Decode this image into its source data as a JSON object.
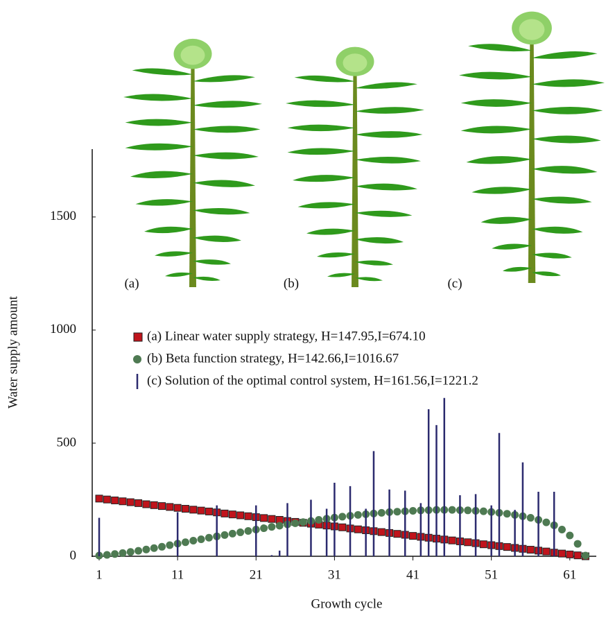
{
  "chart_data": {
    "type": "scatter",
    "xlabel": "Growth cycle",
    "ylabel": "Water supply amount",
    "xlim": [
      0,
      64.5
    ],
    "ylim": [
      0,
      1800
    ],
    "xticks": [
      1,
      11,
      21,
      31,
      41,
      51,
      61
    ],
    "yticks": [
      0,
      500,
      1000,
      1500
    ],
    "annotations": [
      "(a)",
      "(b)",
      "(c)"
    ],
    "series": [
      {
        "name": "(a) Linear water supply strategy, H=147.95,I=674.10",
        "marker": "square",
        "color": "#c0141c",
        "x": [
          1,
          2,
          3,
          4,
          5,
          6,
          7,
          8,
          9,
          10,
          11,
          12,
          13,
          14,
          15,
          16,
          17,
          18,
          19,
          20,
          21,
          22,
          23,
          24,
          25,
          26,
          27,
          28,
          29,
          30,
          31,
          32,
          33,
          34,
          35,
          36,
          37,
          38,
          39,
          40,
          41,
          42,
          43,
          44,
          45,
          46,
          47,
          48,
          49,
          50,
          51,
          52,
          53,
          54,
          55,
          56,
          57,
          58,
          59,
          60,
          61,
          62,
          63
        ],
        "values": [
          255,
          251,
          247,
          243,
          239,
          235,
          230,
          226,
          222,
          218,
          214,
          210,
          206,
          202,
          198,
          194,
          189,
          185,
          181,
          177,
          173,
          169,
          165,
          161,
          156,
          152,
          148,
          144,
          140,
          136,
          132,
          128,
          123,
          119,
          115,
          111,
          107,
          103,
          99,
          95,
          90,
          86,
          82,
          78,
          74,
          70,
          66,
          62,
          58,
          53,
          49,
          45,
          41,
          37,
          33,
          29,
          25,
          21,
          16,
          12,
          8,
          4,
          0
        ]
      },
      {
        "name": "(b) Beta function strategy, H=142.66,I=1016.67",
        "marker": "circle",
        "color": "#4e7a52",
        "x": [
          1,
          2,
          3,
          4,
          5,
          6,
          7,
          8,
          9,
          10,
          11,
          12,
          13,
          14,
          15,
          16,
          17,
          18,
          19,
          20,
          21,
          22,
          23,
          24,
          25,
          26,
          27,
          28,
          29,
          30,
          31,
          32,
          33,
          34,
          35,
          36,
          37,
          38,
          39,
          40,
          41,
          42,
          43,
          44,
          45,
          46,
          47,
          48,
          49,
          50,
          51,
          52,
          53,
          54,
          55,
          56,
          57,
          58,
          59,
          60,
          61,
          62,
          63
        ],
        "values": [
          3,
          6,
          10,
          14,
          19,
          24,
          30,
          36,
          42,
          49,
          56,
          62,
          69,
          75,
          82,
          88,
          94,
          100,
          106,
          112,
          118,
          124,
          130,
          135,
          141,
          146,
          151,
          156,
          161,
          166,
          171,
          175,
          179,
          183,
          186,
          189,
          192,
          195,
          197,
          199,
          201,
          203,
          204,
          205,
          205,
          205,
          204,
          203,
          201,
          199,
          196,
          192,
          188,
          183,
          177,
          170,
          161,
          150,
          137,
          118,
          92,
          55,
          3
        ]
      },
      {
        "name": "(c) Solution of the optimal control system, H=161.56,I=1221.2",
        "marker": "vline",
        "color": "#2b2a6e",
        "x": [
          1,
          11,
          16,
          21,
          23,
          24,
          25,
          28,
          30,
          31,
          33,
          35,
          36,
          38,
          40,
          42,
          43,
          44,
          45,
          47,
          49,
          51,
          52,
          54,
          55,
          57,
          59
        ],
        "values": [
          170,
          195,
          225,
          225,
          5,
          25,
          235,
          250,
          210,
          325,
          310,
          210,
          465,
          295,
          290,
          235,
          650,
          580,
          700,
          270,
          275,
          225,
          545,
          205,
          415,
          285,
          285
        ]
      }
    ]
  }
}
